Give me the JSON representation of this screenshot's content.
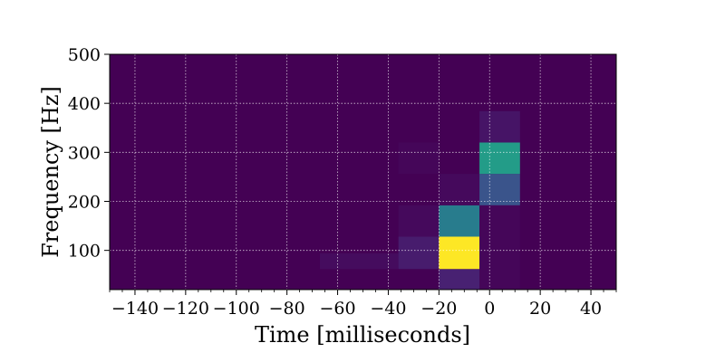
{
  "chart_data": {
    "type": "heatmap",
    "xlabel": "Time [milliseconds]",
    "ylabel": "Frequency [Hz]",
    "xlim": [
      -150,
      50
    ],
    "ylim": [
      20,
      500
    ],
    "xticks": [
      -140,
      -120,
      -100,
      -80,
      -60,
      -40,
      -20,
      0,
      20,
      40
    ],
    "yticks": [
      100,
      200,
      300,
      400,
      500
    ],
    "grid": true,
    "background_color": "#440154",
    "colormap": "viridis",
    "value_scale": "normalized 0-1",
    "tiles": [
      {
        "t0": -67,
        "t1": -36,
        "f0": 62,
        "f1": 94,
        "value": 0.04
      },
      {
        "t0": -36,
        "t1": -20,
        "f0": 62,
        "f1": 128,
        "value": 0.1
      },
      {
        "t0": -36,
        "t1": -20,
        "f0": 128,
        "f1": 192,
        "value": 0.03
      },
      {
        "t0": -36,
        "t1": -20,
        "f0": 256,
        "f1": 320,
        "value": 0.02
      },
      {
        "t0": -20,
        "t1": -4,
        "f0": 20,
        "f1": 62,
        "value": 0.12
      },
      {
        "t0": -20,
        "t1": -4,
        "f0": 62,
        "f1": 128,
        "value": 1.0
      },
      {
        "t0": -20,
        "t1": -4,
        "f0": 128,
        "f1": 192,
        "value": 0.42
      },
      {
        "t0": -20,
        "t1": -4,
        "f0": 192,
        "f1": 256,
        "value": 0.03
      },
      {
        "t0": -4,
        "t1": 12,
        "f0": 20,
        "f1": 192,
        "value": 0.02
      },
      {
        "t0": -4,
        "t1": 12,
        "f0": 192,
        "f1": 256,
        "value": 0.26
      },
      {
        "t0": -4,
        "t1": 12,
        "f0": 256,
        "f1": 320,
        "value": 0.55
      },
      {
        "t0": -4,
        "t1": 12,
        "f0": 320,
        "f1": 384,
        "value": 0.07
      }
    ]
  }
}
